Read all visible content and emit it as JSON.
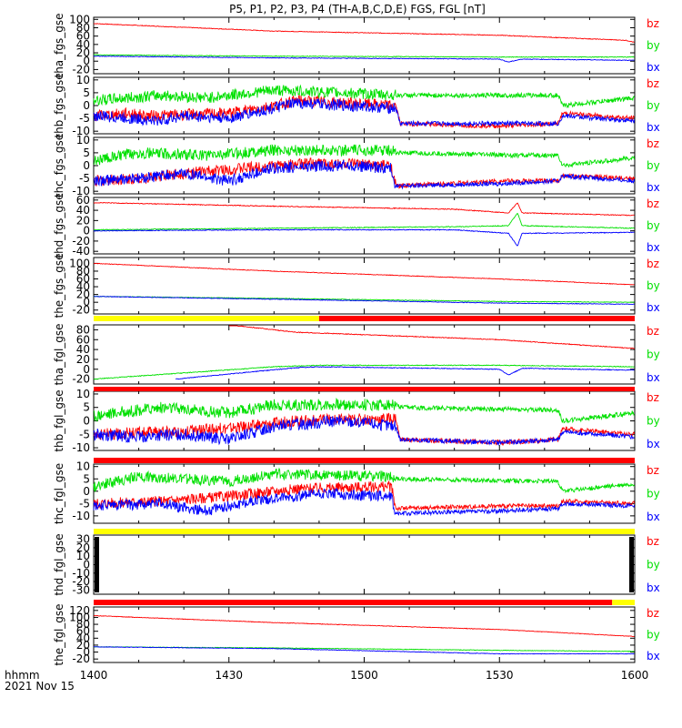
{
  "title": "P5, P1, P2, P3, P4 (TH-A,B,C,D,E) FGS, FGL [nT]",
  "xaxis": {
    "label_line1": "hhmm",
    "label_line2": "2021 Nov 15",
    "range": [
      "14:00",
      "16:00"
    ],
    "ticks": [
      "1400",
      "1430",
      "1500",
      "1530",
      "1600"
    ]
  },
  "colors": {
    "bz": "#ff0000",
    "by": "#00e000",
    "bx": "#0000ff",
    "yellow": "#ffff00",
    "red": "#ff0000",
    "black": "#000000"
  },
  "status_bars": [
    {
      "segments": [
        {
          "from": "14:00",
          "to": "14:50",
          "color": "yellow"
        },
        {
          "from": "14:50",
          "to": "16:00",
          "color": "red"
        }
      ]
    },
    {
      "segments": [
        {
          "from": "14:00",
          "to": "16:00",
          "color": "red"
        }
      ]
    },
    {
      "segments": [
        {
          "from": "14:00",
          "to": "16:00",
          "color": "red"
        }
      ]
    },
    {
      "segments": [
        {
          "from": "14:00",
          "to": "16:00",
          "color": "yellow"
        }
      ]
    },
    {
      "segments": [
        {
          "from": "14:00",
          "to": "15:55",
          "color": "red"
        },
        {
          "from": "15:55",
          "to": "16:00",
          "color": "yellow"
        }
      ]
    }
  ],
  "chart_data": [
    {
      "type": "line",
      "ylabel": "tha_fgs_gse",
      "ylim": [
        -30,
        105
      ],
      "yticks": [
        "100",
        "80",
        "60",
        "40",
        "20",
        "0",
        "-20"
      ],
      "series": [
        {
          "name": "bz",
          "knots": [
            [
              0,
              90
            ],
            [
              40,
              72
            ],
            [
              90,
              62
            ],
            [
              118,
              50
            ],
            [
              120,
              45
            ]
          ]
        },
        {
          "name": "by",
          "knots": [
            [
              0,
              15
            ],
            [
              40,
              12
            ],
            [
              90,
              10
            ],
            [
              120,
              10
            ]
          ]
        },
        {
          "name": "bx",
          "knots": [
            [
              0,
              12
            ],
            [
              40,
              8
            ],
            [
              90,
              5
            ],
            [
              92,
              -2
            ],
            [
              95,
              5
            ],
            [
              120,
              2
            ]
          ]
        }
      ]
    },
    {
      "type": "line",
      "ylabel": "thb_fgs_gse",
      "ylim": [
        -11,
        11
      ],
      "yticks": [
        "10",
        "5",
        "0",
        "-5",
        "-10"
      ],
      "series": [
        {
          "name": "bz",
          "knots": [
            [
              0,
              -4
            ],
            [
              8,
              -3
            ],
            [
              12,
              -4
            ],
            [
              30,
              -3
            ],
            [
              40,
              0
            ],
            [
              45,
              2
            ],
            [
              67,
              0
            ],
            [
              68,
              -7
            ],
            [
              90,
              -8
            ],
            [
              103,
              -7
            ],
            [
              104,
              -3
            ],
            [
              120,
              -5
            ]
          ]
        },
        {
          "name": "by",
          "knots": [
            [
              0,
              2
            ],
            [
              15,
              4
            ],
            [
              25,
              3
            ],
            [
              40,
              6
            ],
            [
              55,
              5
            ],
            [
              67,
              4
            ],
            [
              90,
              4
            ],
            [
              103,
              4
            ],
            [
              104,
              0
            ],
            [
              120,
              3
            ]
          ]
        },
        {
          "name": "bx",
          "knots": [
            [
              0,
              -4
            ],
            [
              8,
              -5
            ],
            [
              14,
              -6
            ],
            [
              20,
              -4
            ],
            [
              30,
              -5
            ],
            [
              40,
              -1
            ],
            [
              45,
              1
            ],
            [
              67,
              -1
            ],
            [
              68,
              -7
            ],
            [
              90,
              -7
            ],
            [
              103,
              -7
            ],
            [
              104,
              -4
            ],
            [
              120,
              -6
            ]
          ]
        }
      ]
    },
    {
      "type": "line",
      "ylabel": "thc_fgs_gse",
      "ylim": [
        -11,
        11
      ],
      "yticks": [
        "10",
        "5",
        "0",
        "-5",
        "-10"
      ],
      "series": [
        {
          "name": "bz",
          "knots": [
            [
              0,
              -6
            ],
            [
              10,
              -5
            ],
            [
              20,
              -3
            ],
            [
              40,
              0
            ],
            [
              50,
              1
            ],
            [
              66,
              0
            ],
            [
              67,
              -8
            ],
            [
              90,
              -6
            ],
            [
              103,
              -6
            ],
            [
              104,
              -4
            ],
            [
              120,
              -5
            ]
          ]
        },
        {
          "name": "by",
          "knots": [
            [
              0,
              2
            ],
            [
              10,
              5
            ],
            [
              25,
              4
            ],
            [
              40,
              6
            ],
            [
              66,
              6
            ],
            [
              67,
              5
            ],
            [
              95,
              4
            ],
            [
              103,
              4
            ],
            [
              104,
              0
            ],
            [
              120,
              3
            ]
          ]
        },
        {
          "name": "bx",
          "knots": [
            [
              0,
              -6
            ],
            [
              10,
              -5
            ],
            [
              20,
              -3
            ],
            [
              30,
              -6
            ],
            [
              40,
              -1
            ],
            [
              55,
              0
            ],
            [
              66,
              -1
            ],
            [
              67,
              -8
            ],
            [
              90,
              -7
            ],
            [
              103,
              -6
            ],
            [
              104,
              -4
            ],
            [
              120,
              -6
            ]
          ]
        }
      ]
    },
    {
      "type": "line",
      "ylabel": "thd_fgs_gse",
      "ylim": [
        -45,
        65
      ],
      "yticks": [
        "60",
        "40",
        "20",
        "0",
        "-20",
        "-40"
      ],
      "series": [
        {
          "name": "bz",
          "knots": [
            [
              0,
              55
            ],
            [
              40,
              48
            ],
            [
              80,
              42
            ],
            [
              92,
              35
            ],
            [
              94,
              55
            ],
            [
              95,
              35
            ],
            [
              120,
              30
            ]
          ]
        },
        {
          "name": "by",
          "knots": [
            [
              0,
              2
            ],
            [
              40,
              5
            ],
            [
              80,
              8
            ],
            [
              92,
              10
            ],
            [
              94,
              35
            ],
            [
              95,
              10
            ],
            [
              120,
              5
            ]
          ]
        },
        {
          "name": "bx",
          "knots": [
            [
              0,
              0
            ],
            [
              40,
              2
            ],
            [
              80,
              2
            ],
            [
              92,
              -5
            ],
            [
              94,
              -30
            ],
            [
              95,
              -5
            ],
            [
              120,
              -3
            ]
          ]
        }
      ]
    },
    {
      "type": "line",
      "ylabel": "the_fgs_gse",
      "ylim": [
        -30,
        115
      ],
      "yticks": [
        "100",
        "80",
        "60",
        "40",
        "20",
        "0",
        "-20"
      ],
      "series": [
        {
          "name": "bz",
          "knots": [
            [
              0,
              100
            ],
            [
              40,
              80
            ],
            [
              90,
              60
            ],
            [
              120,
              45
            ]
          ]
        },
        {
          "name": "by",
          "knots": [
            [
              0,
              15
            ],
            [
              40,
              10
            ],
            [
              90,
              2
            ],
            [
              120,
              0
            ]
          ]
        },
        {
          "name": "bx",
          "knots": [
            [
              0,
              15
            ],
            [
              40,
              8
            ],
            [
              90,
              -2
            ],
            [
              120,
              -5
            ]
          ]
        }
      ]
    },
    {
      "type": "line",
      "ylabel": "tha_fgl_gse",
      "ylim": [
        -30,
        90
      ],
      "yticks": [
        "80",
        "60",
        "40",
        "20",
        "0",
        "-20"
      ],
      "series": [
        {
          "name": "bz",
          "knots": [
            [
              30,
              90
            ],
            [
              45,
              75
            ],
            [
              90,
              60
            ],
            [
              120,
              42
            ]
          ]
        },
        {
          "name": "by",
          "knots": [
            [
              0,
              -20
            ],
            [
              40,
              5
            ],
            [
              50,
              8
            ],
            [
              90,
              8
            ],
            [
              120,
              5
            ]
          ]
        },
        {
          "name": "bx",
          "knots": [
            [
              18,
              -20
            ],
            [
              45,
              3
            ],
            [
              50,
              5
            ],
            [
              90,
              0
            ],
            [
              92,
              -12
            ],
            [
              95,
              2
            ],
            [
              120,
              -2
            ]
          ]
        }
      ]
    },
    {
      "type": "line",
      "ylabel": "thb_fgl_gse",
      "ylim": [
        -11,
        11
      ],
      "yticks": [
        "10",
        "5",
        "0",
        "-5",
        "-10"
      ],
      "series": [
        {
          "name": "bz",
          "knots": [
            [
              0,
              -5
            ],
            [
              20,
              -4
            ],
            [
              35,
              -2
            ],
            [
              45,
              0
            ],
            [
              67,
              1
            ],
            [
              68,
              -7
            ],
            [
              90,
              -8
            ],
            [
              103,
              -7
            ],
            [
              104,
              -3
            ],
            [
              120,
              -5
            ]
          ]
        },
        {
          "name": "by",
          "knots": [
            [
              0,
              2
            ],
            [
              15,
              5
            ],
            [
              30,
              3
            ],
            [
              40,
              6
            ],
            [
              67,
              6
            ],
            [
              68,
              5
            ],
            [
              103,
              4
            ],
            [
              104,
              0
            ],
            [
              120,
              3
            ]
          ]
        },
        {
          "name": "bx",
          "knots": [
            [
              0,
              -5
            ],
            [
              10,
              -6
            ],
            [
              20,
              -5
            ],
            [
              30,
              -7
            ],
            [
              40,
              -2
            ],
            [
              55,
              0
            ],
            [
              67,
              -2
            ],
            [
              68,
              -7
            ],
            [
              90,
              -8
            ],
            [
              103,
              -7
            ],
            [
              104,
              -4
            ],
            [
              120,
              -6
            ]
          ]
        }
      ]
    },
    {
      "type": "line",
      "ylabel": "thc_fgl_gse",
      "ylim": [
        -13,
        11
      ],
      "yticks": [
        "10",
        "5",
        "0",
        "-5",
        "-10"
      ],
      "series": [
        {
          "name": "bz",
          "knots": [
            [
              0,
              -5
            ],
            [
              15,
              -4
            ],
            [
              30,
              -2
            ],
            [
              45,
              1
            ],
            [
              66,
              2
            ],
            [
              67,
              -7
            ],
            [
              90,
              -6
            ],
            [
              103,
              -6
            ],
            [
              104,
              -4
            ],
            [
              120,
              -5
            ]
          ]
        },
        {
          "name": "by",
          "knots": [
            [
              0,
              2
            ],
            [
              10,
              6
            ],
            [
              30,
              4
            ],
            [
              40,
              7
            ],
            [
              66,
              6
            ],
            [
              67,
              5
            ],
            [
              103,
              4
            ],
            [
              104,
              0
            ],
            [
              120,
              3
            ]
          ]
        },
        {
          "name": "bx",
          "knots": [
            [
              0,
              -6
            ],
            [
              15,
              -5
            ],
            [
              25,
              -8
            ],
            [
              35,
              -4
            ],
            [
              50,
              -1
            ],
            [
              66,
              -2
            ],
            [
              67,
              -9
            ],
            [
              90,
              -8
            ],
            [
              103,
              -7
            ],
            [
              104,
              -5
            ],
            [
              120,
              -6
            ]
          ]
        }
      ]
    },
    {
      "type": "line",
      "ylabel": "thd_fgl_gse",
      "ylim": [
        -35,
        35
      ],
      "yticks": [
        "30",
        "20",
        "10",
        "0",
        "-10",
        "-20",
        "-30"
      ],
      "series": []
    },
    {
      "type": "line",
      "ylabel": "the_fgl_gse",
      "ylim": [
        -30,
        130
      ],
      "yticks": [
        "120",
        "100",
        "80",
        "60",
        "40",
        "20",
        "0",
        "-20"
      ],
      "series": [
        {
          "name": "bz",
          "knots": [
            [
              0,
              105
            ],
            [
              40,
              85
            ],
            [
              90,
              65
            ],
            [
              120,
              45
            ]
          ]
        },
        {
          "name": "by",
          "knots": [
            [
              0,
              15
            ],
            [
              40,
              12
            ],
            [
              90,
              5
            ],
            [
              120,
              2
            ]
          ]
        },
        {
          "name": "bx",
          "knots": [
            [
              0,
              15
            ],
            [
              40,
              10
            ],
            [
              90,
              -5
            ],
            [
              120,
              -5
            ]
          ]
        }
      ]
    }
  ]
}
